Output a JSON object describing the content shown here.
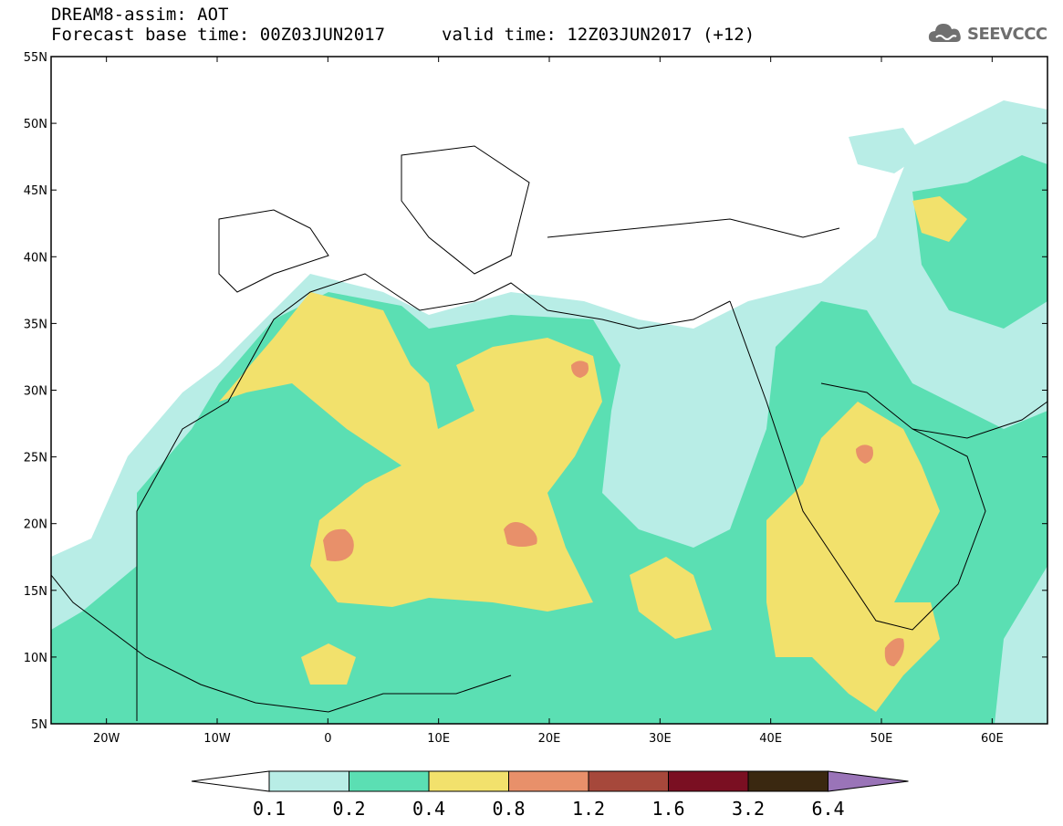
{
  "header": {
    "title": "DREAM8-assim: AOT",
    "base_time": "Forecast base time: 00Z03JUN2017",
    "valid_time": "valid time: 12Z03JUN2017 (+12)"
  },
  "logo": {
    "text": "SEEVCCC",
    "icon": "cloud-icon"
  },
  "map": {
    "lat_labels": [
      "55N",
      "50N",
      "45N",
      "40N",
      "35N",
      "30N",
      "25N",
      "20N",
      "15N",
      "10N",
      "5N"
    ],
    "lon_labels": [
      "20W",
      "10W",
      "0",
      "10E",
      "20E",
      "30E",
      "40E",
      "50E",
      "60E"
    ],
    "lat_range": [
      5,
      55
    ],
    "lon_range": [
      -25,
      65
    ]
  },
  "colorbar": {
    "levels": [
      "0.1",
      "0.2",
      "0.4",
      "0.8",
      "1.2",
      "1.6",
      "3.2",
      "6.4"
    ],
    "colors": [
      "#b8ede6",
      "#5bdfb3",
      "#f2e16c",
      "#e8906a",
      "#a6483b",
      "#7a0f22",
      "#3a2810",
      "#9a74b8"
    ]
  }
}
